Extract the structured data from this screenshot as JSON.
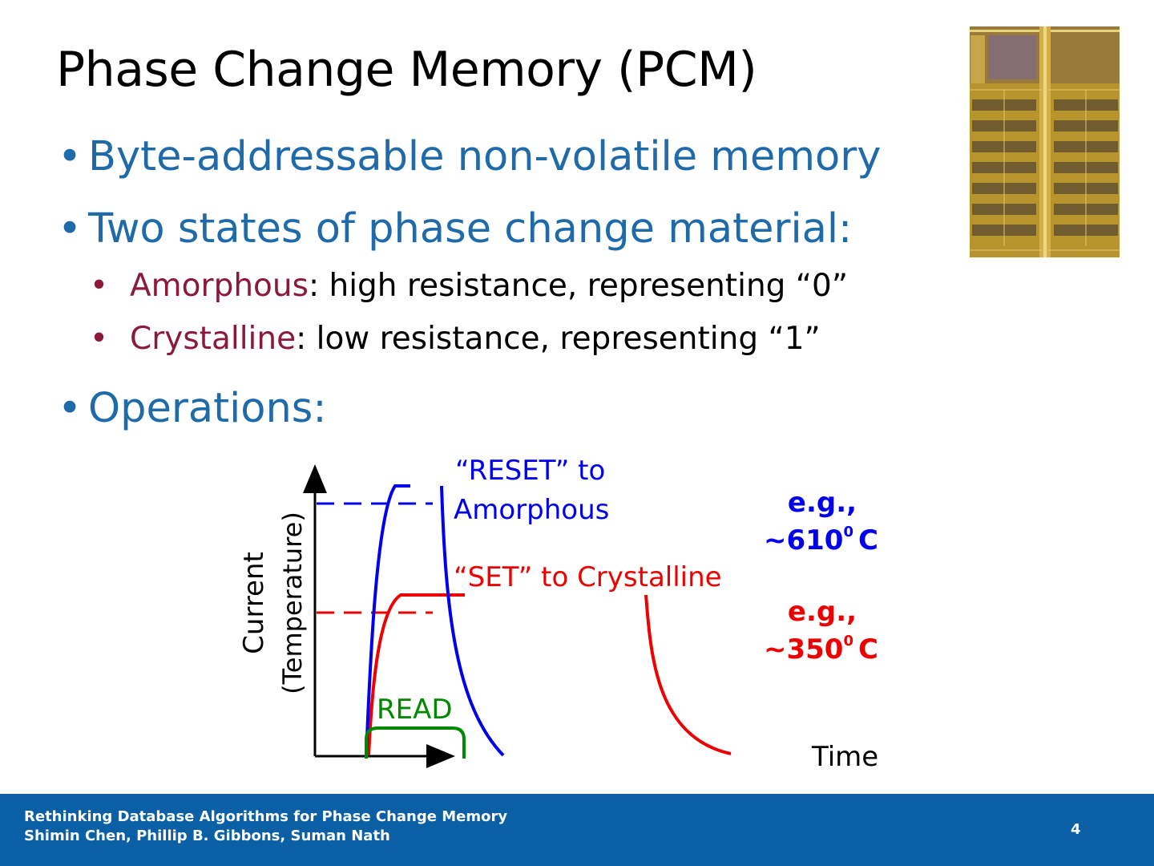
{
  "title": "Phase Change Memory (PCM)",
  "bullets": [
    {
      "marker": "•",
      "text": "Byte-addressable non-volatile memory"
    },
    {
      "marker": "•",
      "text": "Two states of phase change material:"
    },
    {
      "marker": "•",
      "text": "Operations:"
    }
  ],
  "sub_bullets": [
    {
      "marker": "•",
      "term": "Amorphous",
      "rest": ":  high resistance, representing “0”"
    },
    {
      "marker": "•",
      "term": "Crystalline",
      "rest": ": low resistance, representing “1”"
    }
  ],
  "diagram": {
    "ylabel_line1": "Current",
    "ylabel_line2": "(Temperature)",
    "xlabel": "Time",
    "reset_line1": "“RESET” to",
    "reset_line2": "Amorphous",
    "set_label": "“SET” to Crystalline",
    "read_label": "READ",
    "reset_eg": "e.g.,",
    "reset_temp": "~610",
    "reset_unit": "C",
    "set_eg": "e.g.,",
    "set_temp": "~350",
    "set_unit": "C",
    "degree_mark": "0",
    "colors": {
      "reset": "#0000ee",
      "set": "#ee0000",
      "read": "#008800"
    }
  },
  "footer": {
    "line1": "Rethinking Database Algorithms for Phase Change Memory",
    "line2": "Shimin Chen, Phillip B. Gibbons, Suman Nath",
    "page": "4"
  }
}
